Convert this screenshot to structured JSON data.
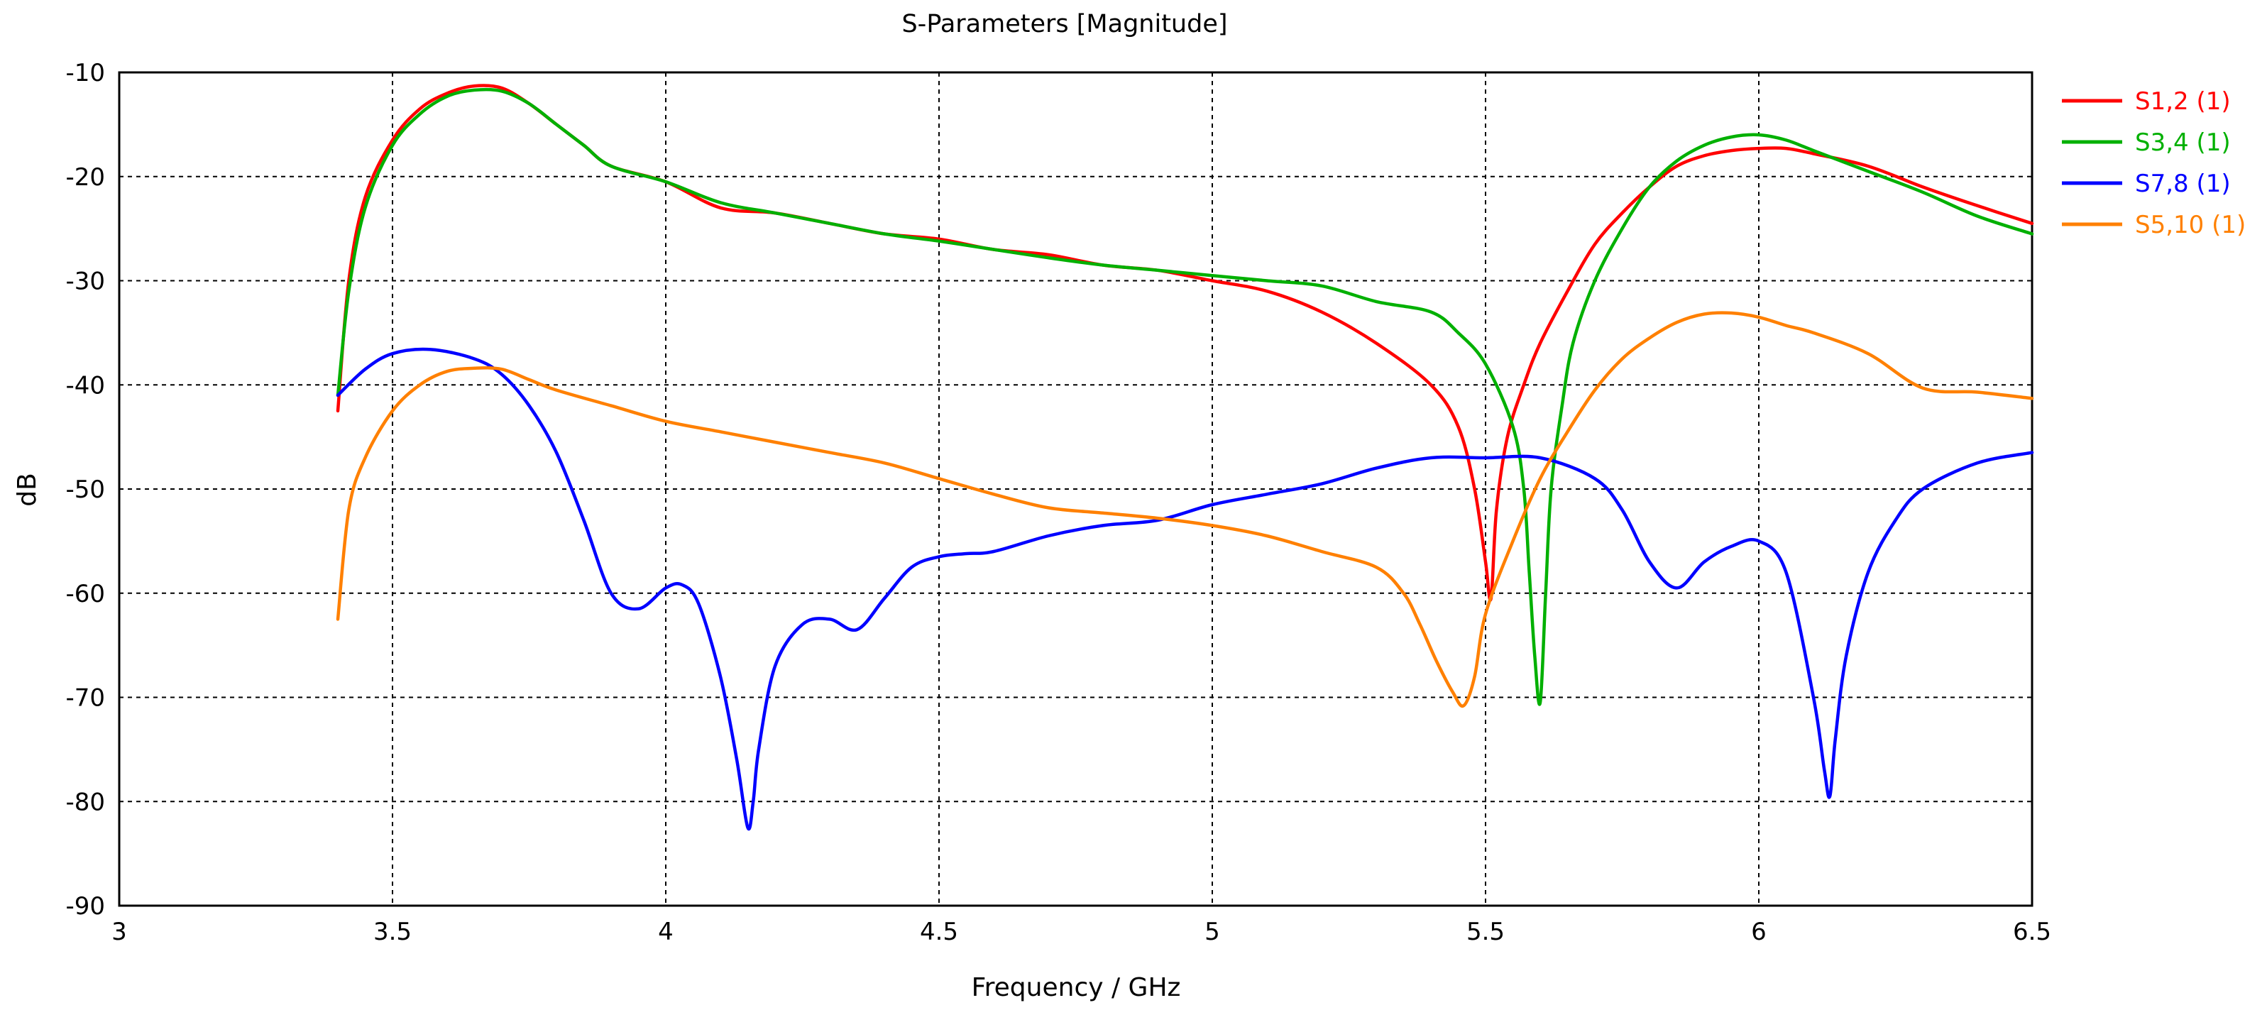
{
  "chart_data": {
    "type": "line",
    "title": "S-Parameters [Magnitude]",
    "xlabel": "Frequency / GHz",
    "ylabel": "dB",
    "xlim": [
      3,
      6.5
    ],
    "ylim": [
      -90,
      -10
    ],
    "xticks": [
      3,
      3.5,
      4,
      4.5,
      5,
      5.5,
      6,
      6.5
    ],
    "xtick_labels": [
      "3",
      "3.5",
      "4",
      "4.5",
      "5",
      "5.5",
      "6",
      "6.5"
    ],
    "yticks": [
      -10,
      -20,
      -30,
      -40,
      -50,
      -60,
      -70,
      -80,
      -90
    ],
    "ytick_labels": [
      "-10",
      "-20",
      "-30",
      "-40",
      "-50",
      "-60",
      "-70",
      "-80",
      "-90"
    ],
    "grid": true,
    "legend_position": "right",
    "series": [
      {
        "name": "S1,2 (1)",
        "color": "#ff0000",
        "x": [
          3.4,
          3.42,
          3.45,
          3.5,
          3.55,
          3.6,
          3.65,
          3.7,
          3.75,
          3.8,
          3.85,
          3.9,
          4.0,
          4.1,
          4.2,
          4.3,
          4.4,
          4.5,
          4.6,
          4.7,
          4.8,
          4.9,
          5.0,
          5.1,
          5.2,
          5.3,
          5.4,
          5.45,
          5.48,
          5.5,
          5.51,
          5.52,
          5.54,
          5.57,
          5.6,
          5.65,
          5.7,
          5.75,
          5.8,
          5.85,
          5.9,
          5.95,
          6.0,
          6.05,
          6.1,
          6.2,
          6.3,
          6.4,
          6.5
        ],
        "y": [
          -42.5,
          -30,
          -22,
          -16.5,
          -13.5,
          -12,
          -11.3,
          -11.5,
          -13,
          -15,
          -17,
          -19,
          -20.5,
          -23,
          -23.5,
          -24.5,
          -25.5,
          -26,
          -27,
          -27.5,
          -28.5,
          -29,
          -30,
          -31,
          -33,
          -36,
          -40,
          -44,
          -50,
          -57,
          -60.5,
          -52,
          -45,
          -40,
          -36,
          -31,
          -26.5,
          -23.5,
          -21,
          -19,
          -18,
          -17.5,
          -17.3,
          -17.3,
          -17.8,
          -19,
          -21,
          -22.8,
          -24.5
        ]
      },
      {
        "name": "S3,4 (1)",
        "color": "#00b000",
        "x": [
          3.4,
          3.42,
          3.45,
          3.5,
          3.55,
          3.6,
          3.65,
          3.7,
          3.75,
          3.8,
          3.85,
          3.9,
          4.0,
          4.1,
          4.2,
          4.3,
          4.4,
          4.5,
          4.6,
          4.7,
          4.8,
          4.9,
          5.0,
          5.1,
          5.2,
          5.3,
          5.4,
          5.45,
          5.5,
          5.55,
          5.57,
          5.58,
          5.59,
          5.6,
          5.61,
          5.62,
          5.64,
          5.66,
          5.7,
          5.75,
          5.8,
          5.85,
          5.9,
          5.95,
          6.0,
          6.05,
          6.1,
          6.2,
          6.3,
          6.4,
          6.5
        ],
        "y": [
          -41,
          -31,
          -23,
          -17,
          -14,
          -12.3,
          -11.7,
          -11.8,
          -13,
          -15,
          -17,
          -19,
          -20.5,
          -22.5,
          -23.5,
          -24.5,
          -25.5,
          -26.2,
          -27,
          -27.8,
          -28.5,
          -29,
          -29.5,
          -30,
          -30.5,
          -32,
          -33,
          -35,
          -38,
          -44,
          -50,
          -58,
          -66,
          -70.5,
          -60,
          -50,
          -42,
          -36,
          -30,
          -25,
          -21,
          -18.5,
          -17,
          -16.2,
          -16,
          -16.5,
          -17.5,
          -19.5,
          -21.5,
          -23.8,
          -25.5
        ]
      },
      {
        "name": "S7,8 (1)",
        "color": "#0000ff",
        "x": [
          3.4,
          3.45,
          3.5,
          3.57,
          3.65,
          3.7,
          3.75,
          3.8,
          3.85,
          3.9,
          3.95,
          4.0,
          4.03,
          4.06,
          4.1,
          4.13,
          4.15,
          4.16,
          4.17,
          4.2,
          4.25,
          4.3,
          4.35,
          4.4,
          4.45,
          4.5,
          4.55,
          4.6,
          4.7,
          4.8,
          4.9,
          5.0,
          5.1,
          5.2,
          5.3,
          5.4,
          5.5,
          5.6,
          5.7,
          5.75,
          5.8,
          5.85,
          5.9,
          5.95,
          6.0,
          6.05,
          6.1,
          6.12,
          6.13,
          6.14,
          6.16,
          6.2,
          6.25,
          6.3,
          6.4,
          6.5
        ],
        "y": [
          -41,
          -38.5,
          -37,
          -36.6,
          -37.5,
          -39,
          -42,
          -46.5,
          -53,
          -60,
          -61.5,
          -59.5,
          -59.2,
          -61,
          -68,
          -76,
          -82.5,
          -80,
          -75,
          -67,
          -63,
          -62.5,
          -63.5,
          -60.5,
          -57.5,
          -56.5,
          -56.2,
          -56,
          -54.5,
          -53.5,
          -53,
          -51.5,
          -50.5,
          -49.5,
          -48,
          -47,
          -47,
          -47,
          -49,
          -52,
          -57,
          -59.5,
          -57,
          -55.5,
          -55,
          -58,
          -70,
          -77,
          -79.5,
          -74,
          -66,
          -58,
          -53,
          -50,
          -47.5,
          -46.5
        ]
      },
      {
        "name": "S5,10 (1)",
        "color": "#ff8000",
        "x": [
          3.4,
          3.42,
          3.45,
          3.5,
          3.55,
          3.6,
          3.65,
          3.7,
          3.75,
          3.8,
          3.9,
          4.0,
          4.1,
          4.2,
          4.3,
          4.4,
          4.5,
          4.6,
          4.7,
          4.8,
          4.9,
          5.0,
          5.1,
          5.2,
          5.3,
          5.35,
          5.38,
          5.41,
          5.44,
          5.46,
          5.48,
          5.5,
          5.55,
          5.6,
          5.65,
          5.7,
          5.75,
          5.8,
          5.85,
          5.9,
          5.95,
          6.0,
          6.05,
          6.1,
          6.2,
          6.3,
          6.4,
          6.5
        ],
        "y": [
          -62.5,
          -52,
          -47,
          -42.5,
          -40,
          -38.7,
          -38.4,
          -38.5,
          -39.5,
          -40.5,
          -42,
          -43.5,
          -44.5,
          -45.5,
          -46.5,
          -47.5,
          -49,
          -50.5,
          -51.8,
          -52.3,
          -52.8,
          -53.5,
          -54.5,
          -56,
          -57.5,
          -60,
          -63,
          -66.5,
          -69.5,
          -70.8,
          -68,
          -62,
          -55,
          -49,
          -44.5,
          -40.5,
          -37.5,
          -35.5,
          -34,
          -33.2,
          -33.1,
          -33.5,
          -34.3,
          -35,
          -37,
          -40.3,
          -40.7,
          -41.3
        ]
      }
    ]
  }
}
